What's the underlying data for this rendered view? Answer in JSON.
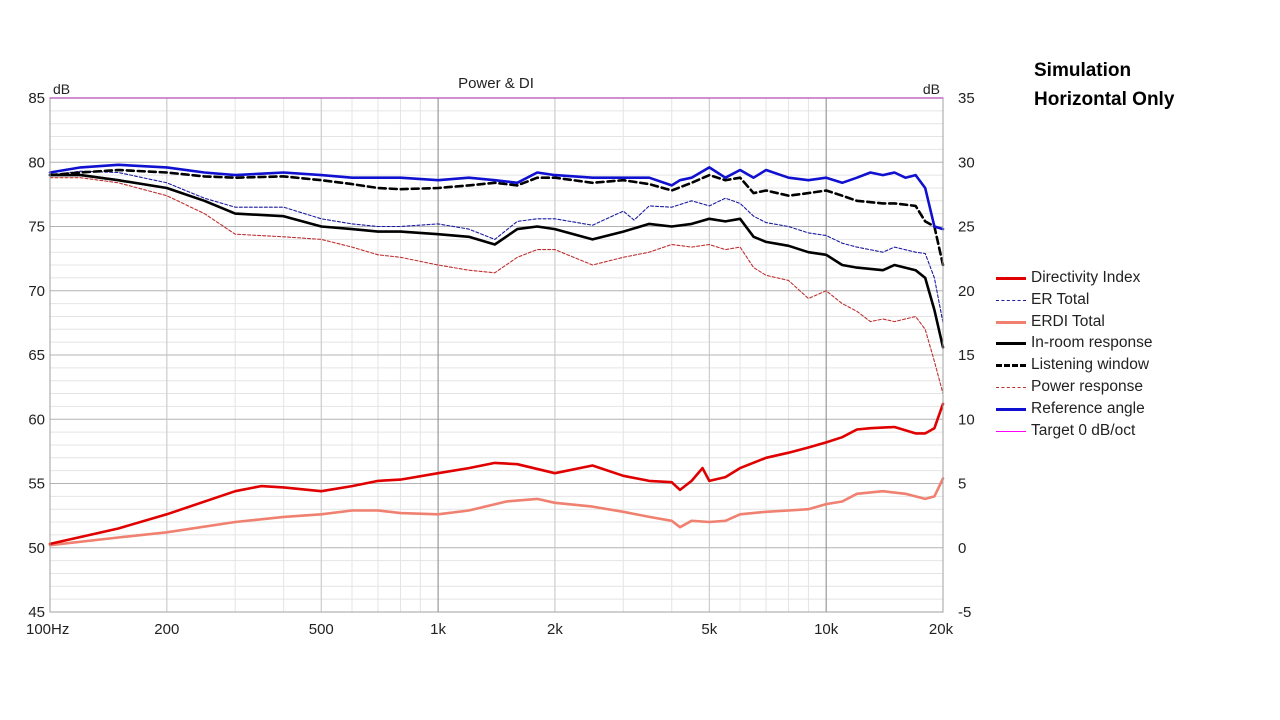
{
  "annotation": {
    "line1": "Simulation",
    "line2": "Horizontal Only"
  },
  "chart_data": {
    "type": "line",
    "title": "Power & DI",
    "left_unit": "dB",
    "right_unit": "dB",
    "x_scale": "log",
    "xlim": [
      100,
      20000
    ],
    "ylim_left": [
      45,
      85
    ],
    "ylim_right": [
      -5,
      35
    ],
    "x_ticks": [
      {
        "v": 100,
        "label": "100Hz"
      },
      {
        "v": 200,
        "label": "200"
      },
      {
        "v": 500,
        "label": "500"
      },
      {
        "v": 1000,
        "label": "1k"
      },
      {
        "v": 2000,
        "label": "2k"
      },
      {
        "v": 5000,
        "label": "5k"
      },
      {
        "v": 10000,
        "label": "10k"
      },
      {
        "v": 20000,
        "label": "20k"
      }
    ],
    "y_ticks_left": [
      45,
      50,
      55,
      60,
      65,
      70,
      75,
      80,
      85
    ],
    "y_ticks_right": [
      -5,
      0,
      5,
      10,
      15,
      20,
      25,
      30,
      35
    ],
    "grid": true,
    "legend_position": "right",
    "series": [
      {
        "name": "Directivity Index",
        "axis": "right",
        "color": "#e00000",
        "width": 2.6,
        "dash": "",
        "x": [
          100,
          150,
          200,
          300,
          350,
          400,
          500,
          600,
          700,
          800,
          1000,
          1200,
          1400,
          1600,
          2000,
          2500,
          3000,
          3500,
          4000,
          4200,
          4500,
          4800,
          5000,
          5500,
          6000,
          7000,
          8000,
          9000,
          10000,
          11000,
          12000,
          13000,
          15000,
          17000,
          18000,
          19000,
          20000
        ],
        "y": [
          0.3,
          1.5,
          2.6,
          4.4,
          4.8,
          4.7,
          4.4,
          4.8,
          5.2,
          5.3,
          5.8,
          6.2,
          6.6,
          6.5,
          5.8,
          6.4,
          5.6,
          5.2,
          5.1,
          4.5,
          5.2,
          6.2,
          5.2,
          5.5,
          6.2,
          7.0,
          7.4,
          7.8,
          8.2,
          8.6,
          9.2,
          9.3,
          9.4,
          8.9,
          8.9,
          9.3,
          11.2
        ]
      },
      {
        "name": "ER Total",
        "axis": "left",
        "color": "#1c1ca0",
        "width": 1.1,
        "dash": "3,2",
        "x": [
          100,
          120,
          150,
          200,
          250,
          300,
          400,
          500,
          600,
          700,
          800,
          1000,
          1200,
          1400,
          1600,
          1800,
          2000,
          2500,
          3000,
          3200,
          3500,
          4000,
          4500,
          5000,
          5500,
          6000,
          6500,
          7000,
          8000,
          9000,
          10000,
          11000,
          12000,
          14000,
          15000,
          17000,
          18000,
          19000,
          20000
        ],
        "y": [
          79.0,
          79.3,
          79.2,
          78.4,
          77.2,
          76.5,
          76.5,
          75.6,
          75.2,
          75.0,
          75.0,
          75.2,
          74.8,
          74.0,
          75.4,
          75.6,
          75.6,
          75.1,
          76.2,
          75.5,
          76.6,
          76.5,
          77.0,
          76.6,
          77.2,
          76.8,
          75.8,
          75.3,
          75.0,
          74.5,
          74.3,
          73.7,
          73.4,
          73.0,
          73.4,
          73.0,
          72.9,
          71.0,
          67.5
        ]
      },
      {
        "name": "ERDI Total",
        "axis": "right",
        "color": "#f08070",
        "width": 2.6,
        "dash": "",
        "x": [
          100,
          150,
          200,
          300,
          400,
          500,
          600,
          700,
          800,
          1000,
          1200,
          1500,
          1800,
          2000,
          2500,
          3000,
          3500,
          4000,
          4200,
          4500,
          5000,
          5500,
          6000,
          7000,
          8000,
          9000,
          10000,
          11000,
          12000,
          14000,
          16000,
          18000,
          19000,
          20000
        ],
        "y": [
          0.2,
          0.8,
          1.2,
          2.0,
          2.4,
          2.6,
          2.9,
          2.9,
          2.7,
          2.6,
          2.9,
          3.6,
          3.8,
          3.5,
          3.2,
          2.8,
          2.4,
          2.1,
          1.6,
          2.1,
          2.0,
          2.1,
          2.6,
          2.8,
          2.9,
          3.0,
          3.4,
          3.6,
          4.2,
          4.4,
          4.2,
          3.8,
          4.0,
          5.4
        ]
      },
      {
        "name": "In-room response",
        "axis": "left",
        "color": "#000000",
        "width": 2.6,
        "dash": "",
        "x": [
          100,
          120,
          150,
          200,
          250,
          300,
          400,
          500,
          600,
          700,
          800,
          1000,
          1200,
          1400,
          1600,
          1800,
          2000,
          2500,
          3000,
          3500,
          4000,
          4500,
          5000,
          5500,
          6000,
          6500,
          7000,
          8000,
          9000,
          10000,
          11000,
          12000,
          14000,
          15000,
          17000,
          18000,
          19000,
          20000
        ],
        "y": [
          79.0,
          79.0,
          78.6,
          78.0,
          77.0,
          76.0,
          75.8,
          75.0,
          74.8,
          74.6,
          74.6,
          74.4,
          74.2,
          73.6,
          74.8,
          75.0,
          74.8,
          74.0,
          74.6,
          75.2,
          75.0,
          75.2,
          75.6,
          75.4,
          75.6,
          74.2,
          73.8,
          73.5,
          73.0,
          72.8,
          72.0,
          71.8,
          71.6,
          72.0,
          71.6,
          71.0,
          68.5,
          65.6
        ]
      },
      {
        "name": "Listening window",
        "axis": "left",
        "color": "#000000",
        "width": 2.6,
        "dash": "7,4",
        "x": [
          100,
          120,
          150,
          200,
          250,
          300,
          400,
          500,
          600,
          700,
          800,
          1000,
          1200,
          1400,
          1600,
          1800,
          2000,
          2500,
          3000,
          3500,
          4000,
          4500,
          5000,
          5500,
          6000,
          6500,
          7000,
          8000,
          9000,
          10000,
          11000,
          12000,
          14000,
          15000,
          17000,
          18000,
          19000,
          20000
        ],
        "y": [
          79.0,
          79.2,
          79.4,
          79.2,
          78.9,
          78.8,
          78.9,
          78.6,
          78.3,
          78.0,
          77.9,
          78.0,
          78.2,
          78.4,
          78.2,
          78.8,
          78.8,
          78.4,
          78.6,
          78.3,
          77.8,
          78.4,
          79.0,
          78.6,
          78.8,
          77.6,
          77.8,
          77.4,
          77.6,
          77.8,
          77.4,
          77.0,
          76.8,
          76.8,
          76.6,
          75.4,
          75.0,
          72.0
        ]
      },
      {
        "name": "Power response",
        "axis": "left",
        "color": "#c03030",
        "width": 1.1,
        "dash": "3,2",
        "x": [
          100,
          120,
          150,
          200,
          250,
          300,
          400,
          500,
          600,
          700,
          800,
          1000,
          1200,
          1400,
          1600,
          1800,
          2000,
          2500,
          3000,
          3500,
          4000,
          4500,
          5000,
          5500,
          6000,
          6500,
          7000,
          8000,
          9000,
          10000,
          11000,
          12000,
          13000,
          14000,
          15000,
          17000,
          18000,
          19000,
          20000
        ],
        "y": [
          78.8,
          78.8,
          78.4,
          77.4,
          76.0,
          74.4,
          74.2,
          74.0,
          73.4,
          72.8,
          72.6,
          72.0,
          71.6,
          71.4,
          72.6,
          73.2,
          73.2,
          72.0,
          72.6,
          73.0,
          73.6,
          73.4,
          73.6,
          73.2,
          73.4,
          71.8,
          71.2,
          70.8,
          69.4,
          70.0,
          69.0,
          68.4,
          67.6,
          67.8,
          67.6,
          68.0,
          67.0,
          64.5,
          62.0
        ]
      },
      {
        "name": "Reference angle",
        "axis": "left",
        "color": "#1010d0",
        "width": 2.6,
        "dash": "",
        "x": [
          100,
          120,
          150,
          200,
          250,
          300,
          400,
          500,
          600,
          700,
          800,
          1000,
          1200,
          1400,
          1600,
          1800,
          2000,
          2500,
          3000,
          3500,
          4000,
          4200,
          4500,
          5000,
          5500,
          6000,
          6500,
          7000,
          8000,
          9000,
          10000,
          11000,
          12000,
          13000,
          14000,
          15000,
          16000,
          17000,
          18000,
          19000,
          20000
        ],
        "y": [
          79.2,
          79.6,
          79.8,
          79.6,
          79.2,
          79.0,
          79.2,
          79.0,
          78.8,
          78.8,
          78.8,
          78.6,
          78.8,
          78.6,
          78.4,
          79.2,
          79.0,
          78.8,
          78.8,
          78.8,
          78.2,
          78.6,
          78.8,
          79.6,
          78.8,
          79.4,
          78.8,
          79.4,
          78.8,
          78.6,
          78.8,
          78.4,
          78.8,
          79.2,
          79.0,
          79.2,
          78.8,
          79.0,
          78.0,
          75.0,
          74.8
        ]
      },
      {
        "name": "Target 0 dB/oct",
        "axis": "left",
        "color": "#ff00ff",
        "width": 1.4,
        "dash": "",
        "x": [
          100,
          20000
        ],
        "y": [
          85,
          85
        ]
      }
    ]
  }
}
